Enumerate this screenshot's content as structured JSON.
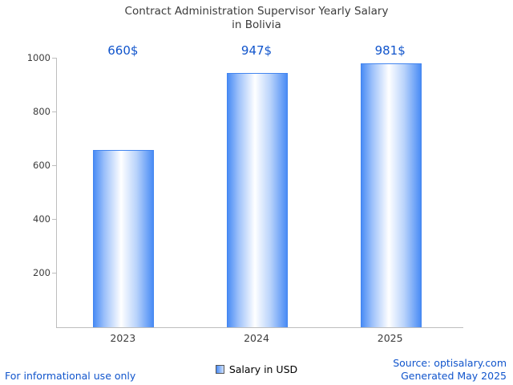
{
  "title": {
    "line1": "Contract Administration Supervisor Yearly Salary",
    "line2": "in Bolivia"
  },
  "chart_data": {
    "type": "bar",
    "title": "Contract Administration Supervisor Yearly Salary in Bolivia",
    "categories": [
      "2023",
      "2024",
      "2025"
    ],
    "values": [
      660,
      947,
      981
    ],
    "value_labels": [
      "660$",
      "947$",
      "981$"
    ],
    "xlabel": "",
    "ylabel": "",
    "ylim": [
      0,
      1000
    ],
    "yticks": [
      200,
      400,
      600,
      800,
      1000
    ],
    "grid": false,
    "legend_label": "Salary in USD",
    "legend_position": "bottom"
  },
  "colors": {
    "bar_edge": "#4a8cf5",
    "bar_center": "#ffffff",
    "bar_border": "#4385ef",
    "value_label_text": "#1155cc",
    "axis_line": "#bdbdbd",
    "tick_text": "#3c3c3c",
    "title_text": "#3c3c3c",
    "footer_text": "#1155cc"
  },
  "footer": {
    "disclaimer": "For informational use only",
    "source": "Source: optisalary.com",
    "generated": "Generated May 2025"
  }
}
